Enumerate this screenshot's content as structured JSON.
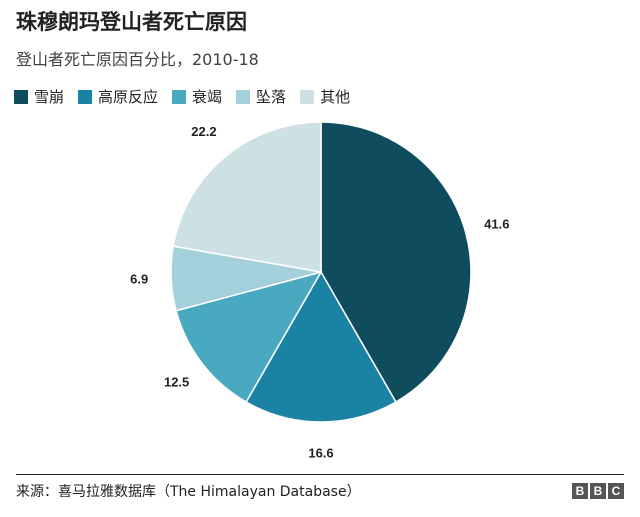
{
  "header": {
    "title": "珠穆朗玛登山者死亡原因",
    "subtitle": "登山者死亡原因百分比，2010-18"
  },
  "legend": [
    {
      "label": "雪崩",
      "color": "#0f4d5e"
    },
    {
      "label": "高原反应",
      "color": "#1a82a3"
    },
    {
      "label": "衰竭",
      "color": "#48a9c0"
    },
    {
      "label": "坠落",
      "color": "#a4d0dc"
    },
    {
      "label": "其他",
      "color": "#cde1e4"
    }
  ],
  "chart_data": {
    "type": "pie",
    "title": "珠穆朗玛登山者死亡原因",
    "subtitle": "登山者死亡原因百分比，2010-18",
    "categories": [
      "雪崩",
      "高原反应",
      "衰竭",
      "坠落",
      "其他"
    ],
    "values": [
      41.6,
      16.6,
      12.5,
      6.9,
      22.2
    ],
    "colors": [
      "#0f4d5e",
      "#1a82a3",
      "#48a9c0",
      "#a4d0dc",
      "#cde1e4"
    ],
    "data_labels": [
      "41.6",
      "16.6",
      "12.5",
      "6.9",
      "22.2"
    ],
    "legend_position": "top-left"
  },
  "footer": {
    "source": "来源：喜马拉雅数据库（The Himalayan Database）",
    "logo_letters": [
      "B",
      "B",
      "C"
    ]
  }
}
